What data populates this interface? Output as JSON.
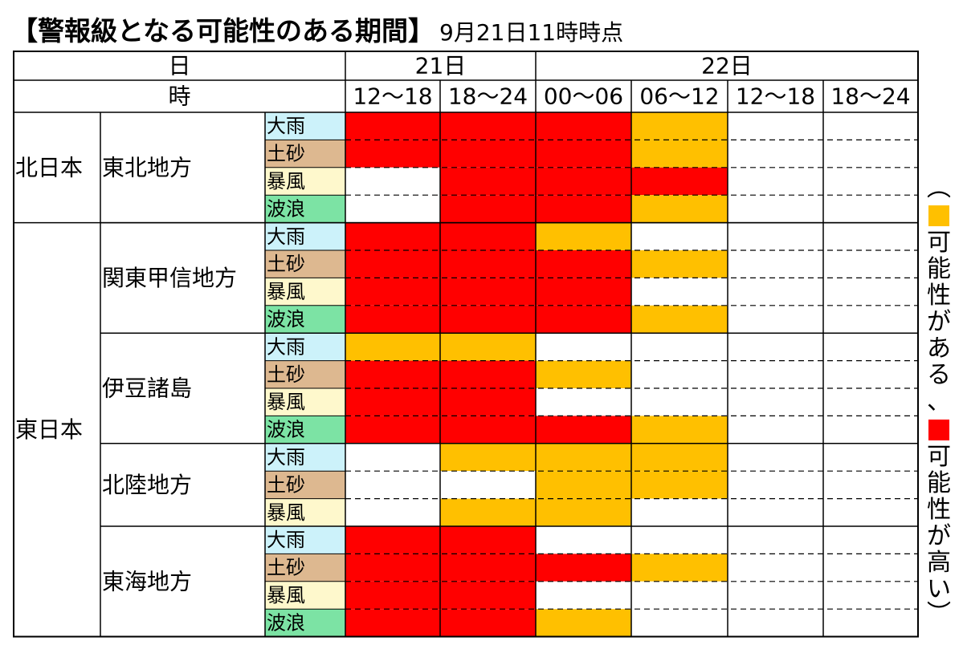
{
  "title": "【警報級となる可能性のある期間】",
  "subtitle": "9月21日11時時点",
  "legend": {
    "open_paren": "︵",
    "close_paren": "︶",
    "possible_label": "可能性がある、",
    "high_label": "可能性が高い"
  },
  "colors": {
    "possible": "#FFC000",
    "high": "#FF0000",
    "none": "#FFFFFF",
    "type_大雨": "#CCF2FA",
    "type_土砂": "#DDB890",
    "type_暴風": "#FEF8CC",
    "type_波浪": "#7CE3A4"
  },
  "chart_data": {
    "type": "table",
    "header": {
      "day_label": "日",
      "hour_label": "時",
      "days": [
        {
          "label": "21日",
          "span": 2
        },
        {
          "label": "22日",
          "span": 4
        }
      ],
      "periods": [
        "12～18",
        "18～24",
        "00～06",
        "06～12",
        "12～18",
        "18～24"
      ]
    },
    "levels": {
      "0": "none",
      "1": "possible",
      "2": "high"
    },
    "regions": [
      {
        "name": "北日本",
        "areas": [
          {
            "name": "東北地方",
            "rows": [
              {
                "type": "大雨",
                "levels": [
                  2,
                  2,
                  2,
                  1,
                  0,
                  0
                ]
              },
              {
                "type": "土砂",
                "levels": [
                  2,
                  2,
                  2,
                  1,
                  0,
                  0
                ]
              },
              {
                "type": "暴風",
                "levels": [
                  0,
                  2,
                  2,
                  2,
                  0,
                  0
                ]
              },
              {
                "type": "波浪",
                "levels": [
                  0,
                  2,
                  2,
                  1,
                  0,
                  0
                ]
              }
            ]
          }
        ]
      },
      {
        "name": "東日本",
        "areas": [
          {
            "name": "関東甲信地方",
            "rows": [
              {
                "type": "大雨",
                "levels": [
                  2,
                  2,
                  1,
                  0,
                  0,
                  0
                ]
              },
              {
                "type": "土砂",
                "levels": [
                  2,
                  2,
                  2,
                  1,
                  0,
                  0
                ]
              },
              {
                "type": "暴風",
                "levels": [
                  2,
                  2,
                  2,
                  0,
                  0,
                  0
                ]
              },
              {
                "type": "波浪",
                "levels": [
                  2,
                  2,
                  2,
                  1,
                  0,
                  0
                ]
              }
            ]
          },
          {
            "name": "伊豆諸島",
            "rows": [
              {
                "type": "大雨",
                "levels": [
                  1,
                  1,
                  0,
                  0,
                  0,
                  0
                ]
              },
              {
                "type": "土砂",
                "levels": [
                  2,
                  2,
                  1,
                  0,
                  0,
                  0
                ]
              },
              {
                "type": "暴風",
                "levels": [
                  2,
                  2,
                  0,
                  0,
                  0,
                  0
                ]
              },
              {
                "type": "波浪",
                "levels": [
                  2,
                  2,
                  2,
                  1,
                  0,
                  0
                ]
              }
            ]
          },
          {
            "name": "北陸地方",
            "rows": [
              {
                "type": "大雨",
                "levels": [
                  0,
                  1,
                  1,
                  1,
                  0,
                  0
                ]
              },
              {
                "type": "土砂",
                "levels": [
                  0,
                  0,
                  1,
                  1,
                  0,
                  0
                ]
              },
              {
                "type": "暴風",
                "levels": [
                  0,
                  1,
                  1,
                  0,
                  0,
                  0
                ]
              }
            ]
          },
          {
            "name": "東海地方",
            "rows": [
              {
                "type": "大雨",
                "levels": [
                  2,
                  2,
                  0,
                  0,
                  0,
                  0
                ]
              },
              {
                "type": "土砂",
                "levels": [
                  2,
                  2,
                  2,
                  1,
                  0,
                  0
                ]
              },
              {
                "type": "暴風",
                "levels": [
                  2,
                  2,
                  0,
                  0,
                  0,
                  0
                ]
              },
              {
                "type": "波浪",
                "levels": [
                  2,
                  2,
                  1,
                  0,
                  0,
                  0
                ]
              }
            ]
          }
        ]
      }
    ]
  }
}
